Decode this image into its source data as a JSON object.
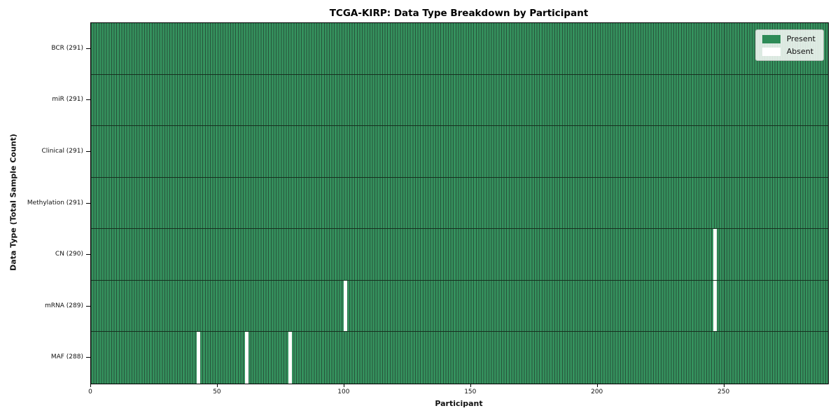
{
  "chart_data": {
    "type": "heatmap",
    "title": "TCGA-KIRP: Data Type Breakdown by Participant",
    "xlabel": "Participant",
    "ylabel": "Data Type (Total Sample Count)",
    "x_ticks": [
      0,
      50,
      100,
      150,
      200,
      250
    ],
    "xlim": [
      0,
      291
    ],
    "n_participants": 291,
    "grid": false,
    "legend_position": "upper right",
    "legend": [
      {
        "label": "Present",
        "color": "#2e8b57"
      },
      {
        "label": "Absent",
        "color": "#ffffff"
      }
    ],
    "rows": [
      {
        "label": "BCR (291)",
        "data_type": "BCR",
        "total_samples": 291,
        "absent_participants": []
      },
      {
        "label": "miR (291)",
        "data_type": "miR",
        "total_samples": 291,
        "absent_participants": []
      },
      {
        "label": "Clinical (291)",
        "data_type": "Clinical",
        "total_samples": 291,
        "absent_participants": []
      },
      {
        "label": "Methylation (291)",
        "data_type": "Methylation",
        "total_samples": 291,
        "absent_participants": []
      },
      {
        "label": "CN (290)",
        "data_type": "CN",
        "total_samples": 290,
        "absent_participants": [
          246
        ]
      },
      {
        "label": "mRNA (289)",
        "data_type": "mRNA",
        "total_samples": 289,
        "absent_participants": [
          100,
          246
        ]
      },
      {
        "label": "MAF (288)",
        "data_type": "MAF",
        "total_samples": 288,
        "absent_participants": [
          42,
          61,
          78
        ]
      }
    ]
  }
}
